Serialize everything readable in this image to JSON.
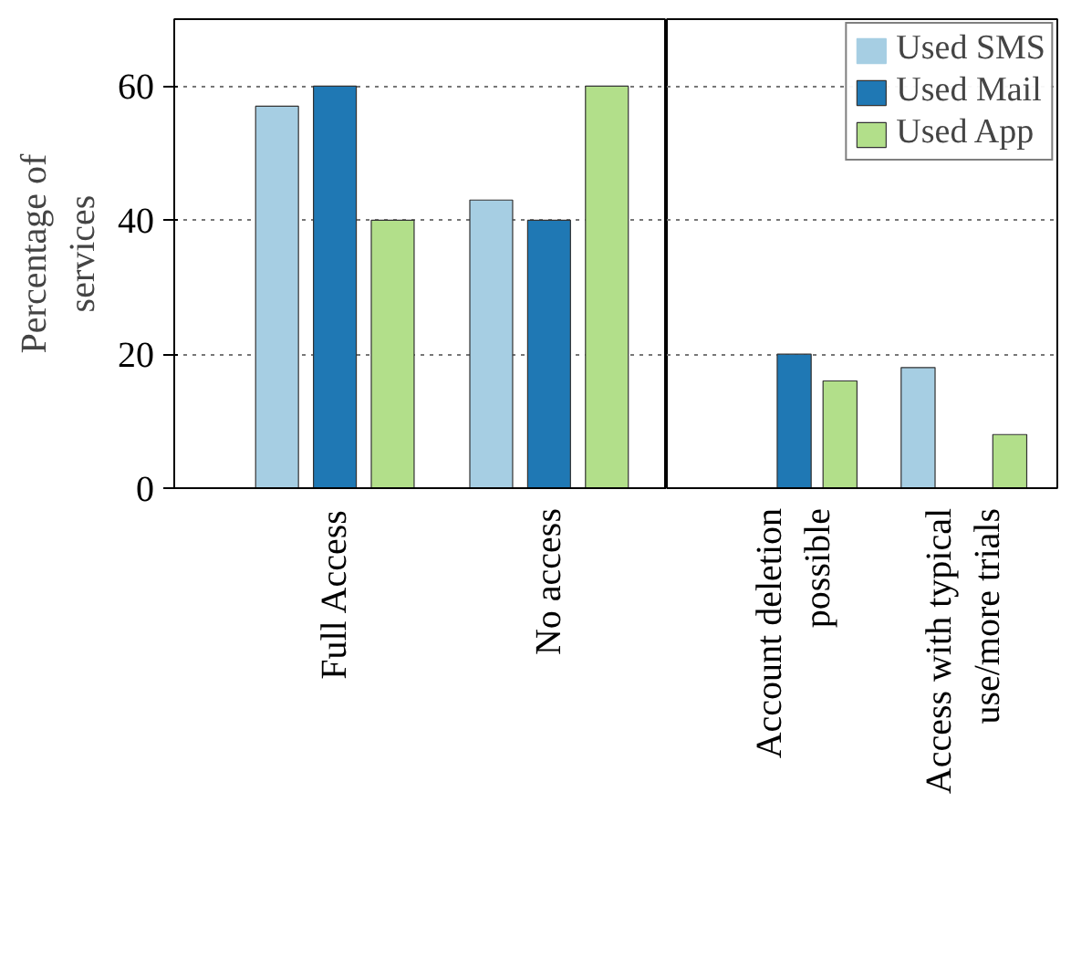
{
  "chart_data": [
    {
      "type": "bar",
      "ylabel": "Percentage of\nservices",
      "categories": [
        "Full Access",
        "No access"
      ],
      "series": [
        {
          "color": "#a6cee3",
          "values": [
            57,
            43
          ]
        },
        {
          "color": "#1f78b4",
          "values": [
            60,
            40
          ]
        },
        {
          "color": "#b2df8a",
          "values": [
            40,
            60
          ]
        }
      ],
      "ylim": [
        0,
        70
      ],
      "yticks": [
        0,
        20,
        40,
        60
      ],
      "grid": "y"
    },
    {
      "type": "bar",
      "categories": [
        "Account deletion\npossible",
        "Access with typical\nuse/more trials"
      ],
      "series": [
        {
          "name": "Used SMS",
          "color": "#a6cee3",
          "values": [
            0,
            18
          ]
        },
        {
          "name": "Used Mail",
          "color": "#1f78b4",
          "values": [
            20,
            0
          ]
        },
        {
          "name": "Used App",
          "color": "#b2df8a",
          "values": [
            16,
            8
          ]
        }
      ],
      "ylim": [
        0,
        70
      ],
      "yticks": [
        0,
        20,
        40,
        60
      ],
      "grid": "y",
      "legend": "top right",
      "tick_labels": "x"
    }
  ]
}
